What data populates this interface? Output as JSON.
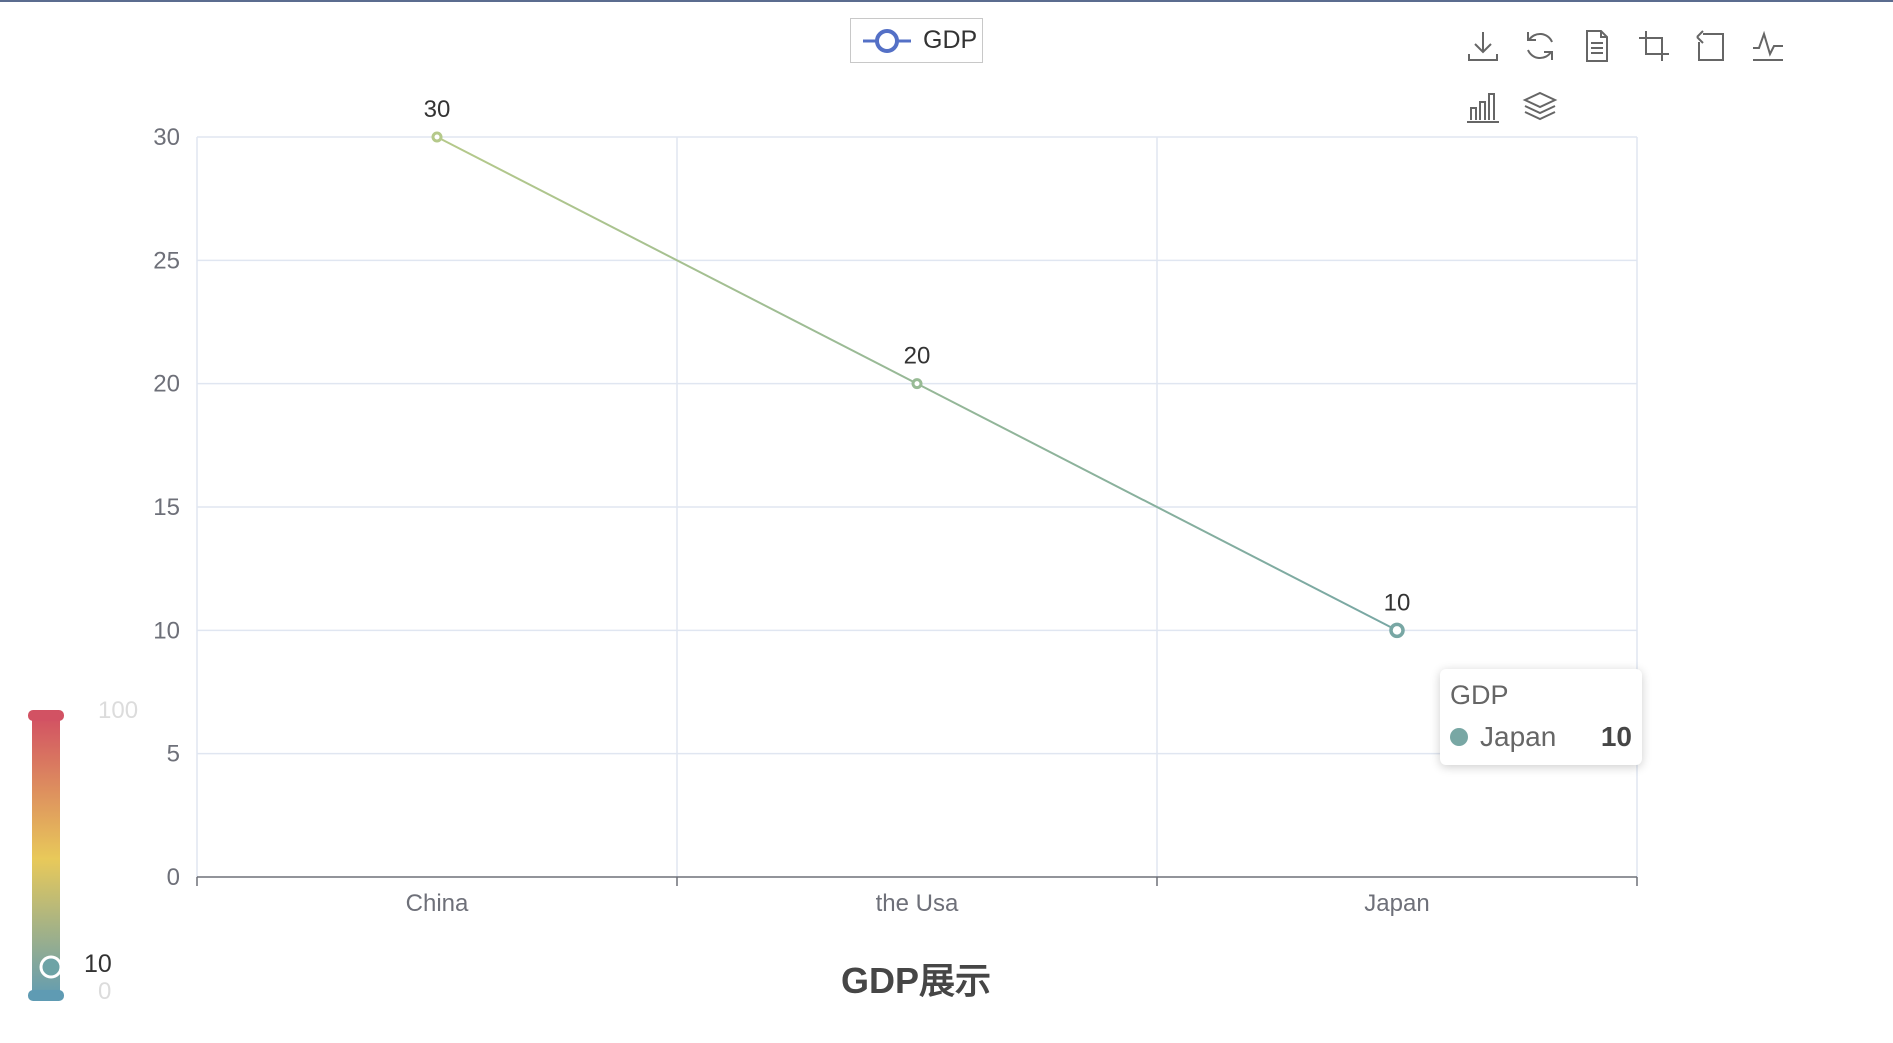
{
  "chart_data": {
    "type": "line",
    "title": "GDP展示",
    "categories": [
      "China",
      "the Usa",
      "Japan"
    ],
    "series": [
      {
        "name": "GDP",
        "values": [
          30,
          20,
          10
        ]
      }
    ],
    "ylim": [
      0,
      30
    ],
    "yticks": [
      0,
      5,
      10,
      15,
      20,
      25,
      30
    ],
    "grid": true,
    "legend": "top-center",
    "data_labels": true
  },
  "legend": {
    "label": "GDP"
  },
  "tooltip": {
    "title": "GDP",
    "name": "Japan",
    "value": "10",
    "color": "#78a7a4"
  },
  "visual_map": {
    "max_label": "100",
    "min_label": "0",
    "current_label": "10",
    "range": [
      0,
      100
    ],
    "colors": [
      "#5f9bb3",
      "#e8c95a",
      "#d25263"
    ]
  },
  "colors": {
    "line_start": "#b5c98a",
    "line_end": "#78a7a4",
    "legend_icon": "#5470c6"
  },
  "toolbox": {
    "icons": [
      "download-icon",
      "refresh-icon",
      "data-view-icon",
      "zoom-icon",
      "zoom-reset-icon",
      "line-switch-icon",
      "bar-switch-icon",
      "stack-icon"
    ]
  }
}
